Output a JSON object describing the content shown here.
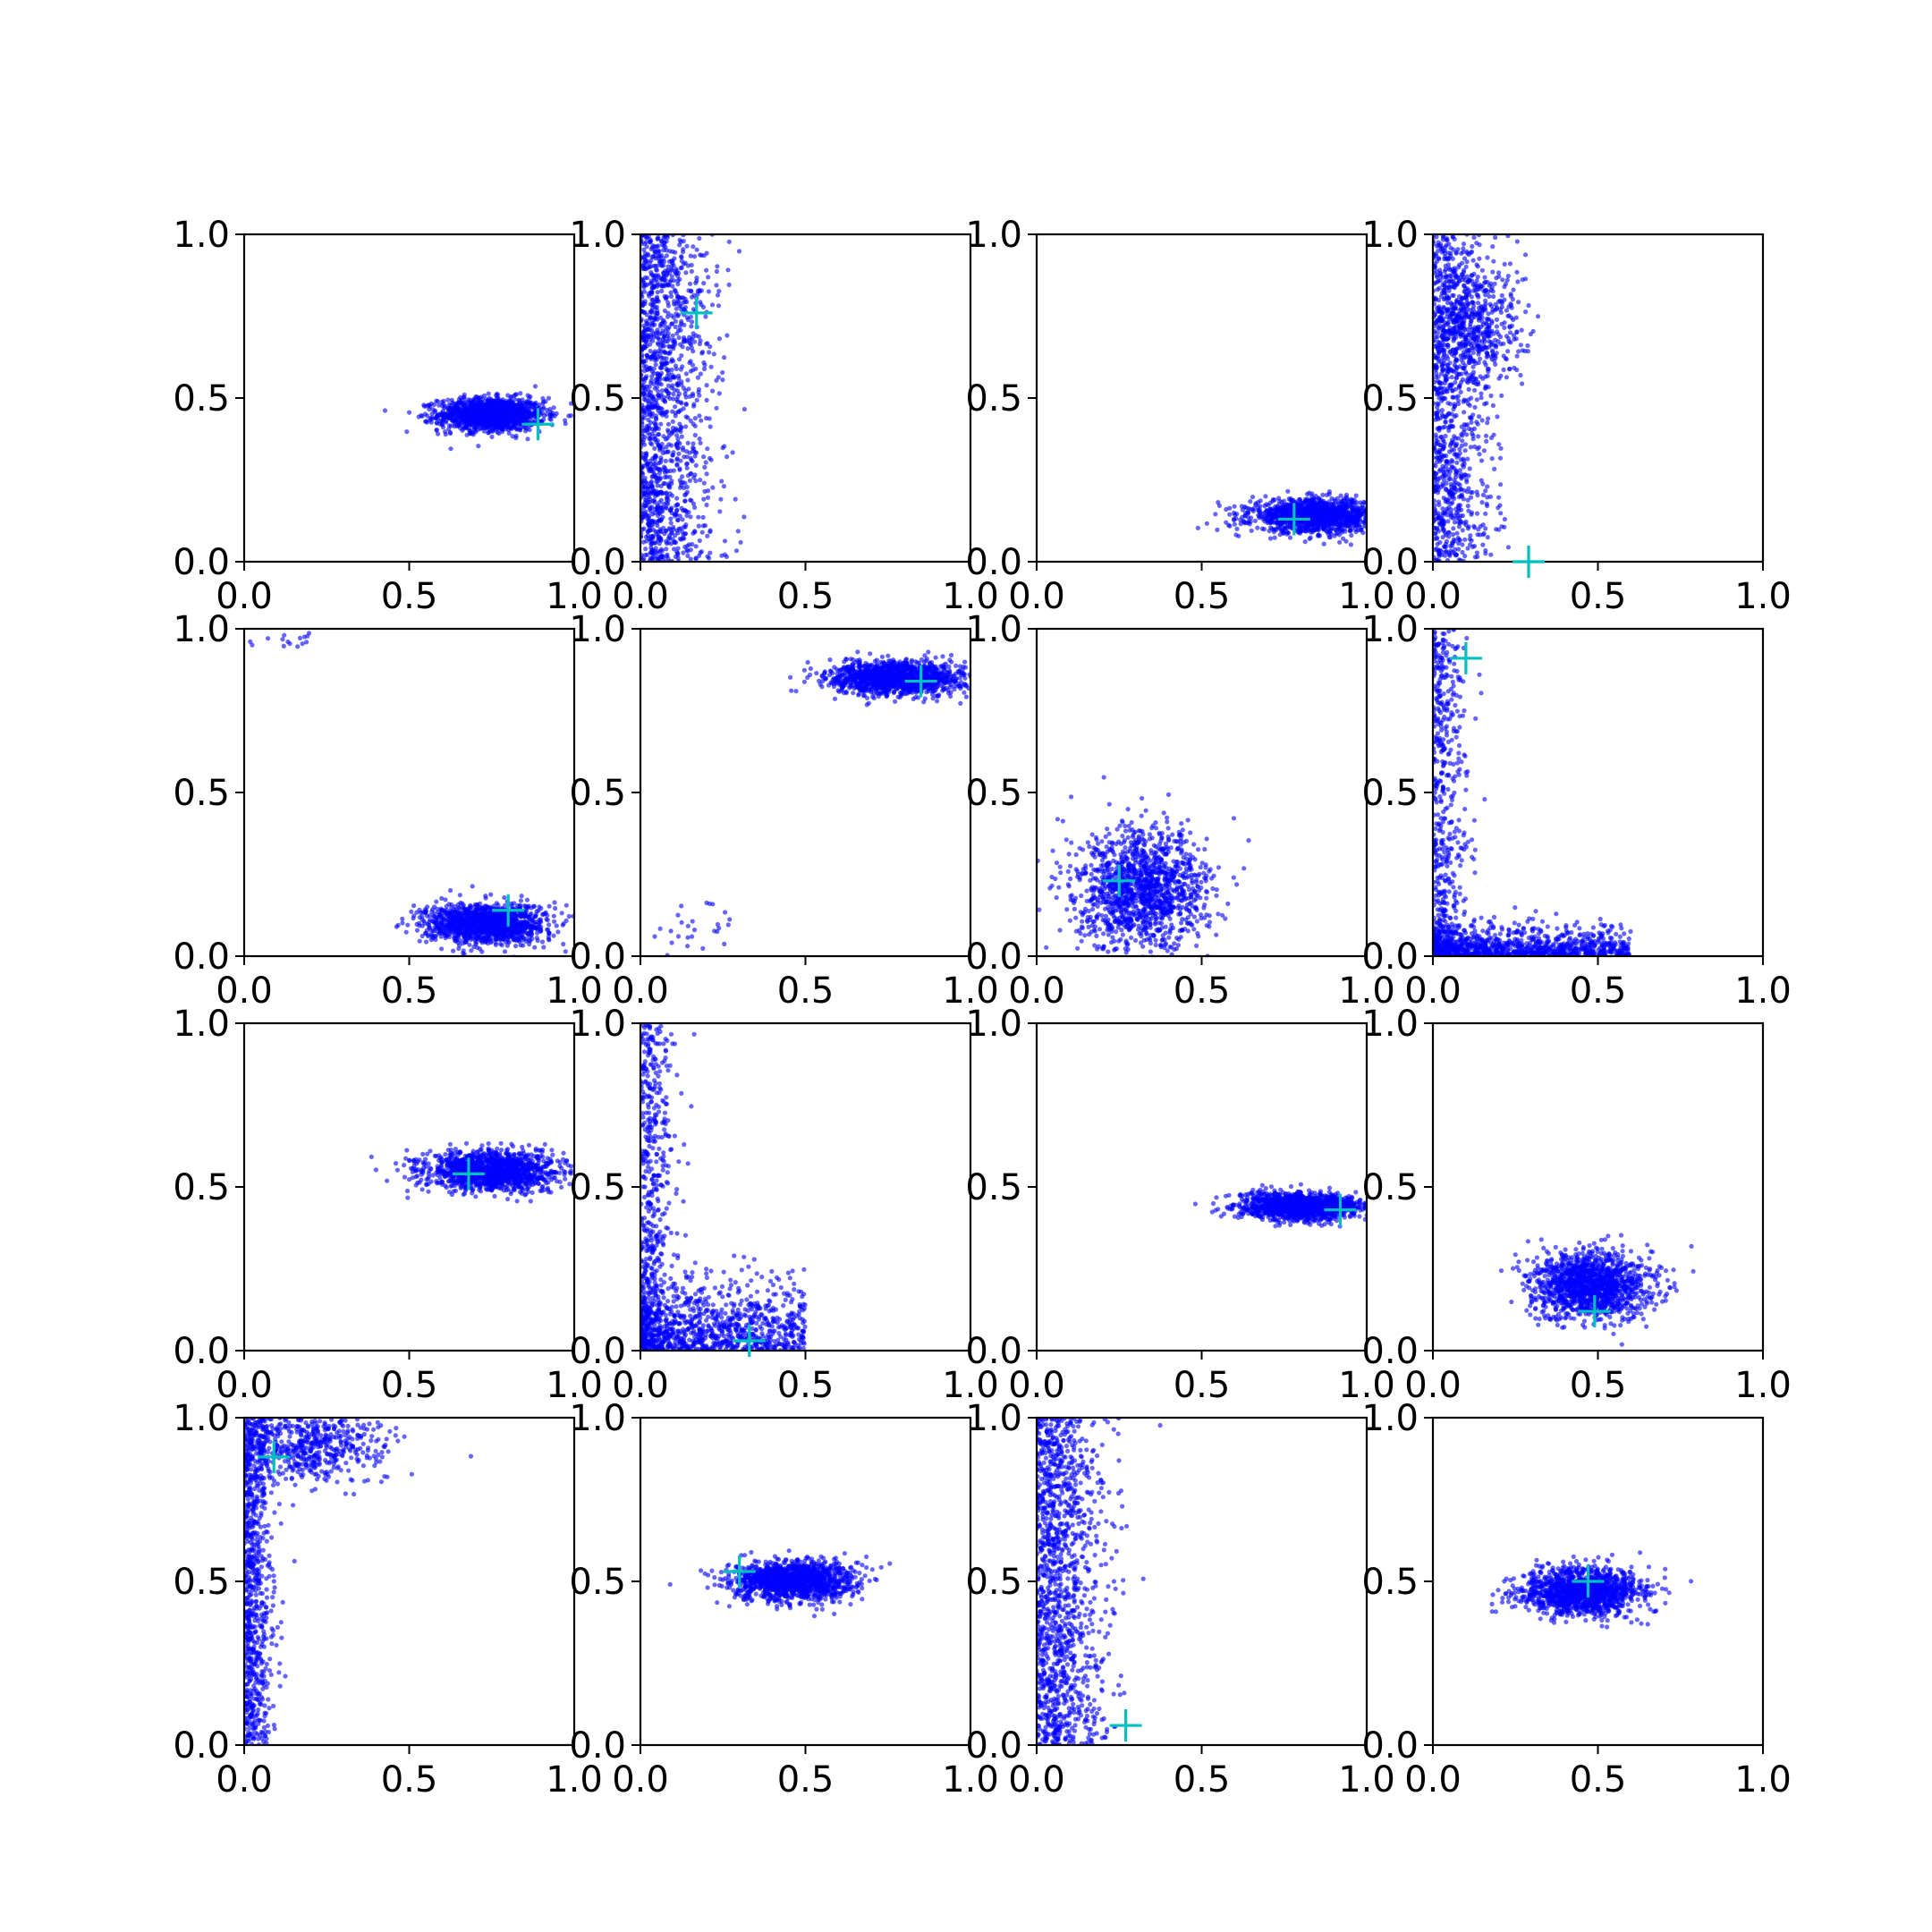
{
  "figure": {
    "background": "#ffffff",
    "point_color": "#0000ff",
    "marker_color": "#00bfbf"
  },
  "chart_data": [
    {
      "type": "scatter",
      "row": 0,
      "col": 0,
      "xlim": [
        0,
        1
      ],
      "ylim": [
        0,
        1
      ],
      "xticks": [
        "0.0",
        "0.5",
        "1.0"
      ],
      "yticks": [
        "0.0",
        "0.5",
        "1.0"
      ],
      "grid": false,
      "marker": {
        "x": 0.89,
        "y": 0.42
      },
      "clusters": [
        {
          "shape": "gaussian",
          "cx": 0.75,
          "cy": 0.45,
          "sx": 0.08,
          "sy": 0.025,
          "n": 1400
        }
      ]
    },
    {
      "type": "scatter",
      "row": 0,
      "col": 1,
      "xlim": [
        0,
        1
      ],
      "ylim": [
        0,
        1
      ],
      "xticks": [
        "0.0",
        "0.5",
        "1.0"
      ],
      "yticks": [
        "0.0",
        "0.5",
        "1.0"
      ],
      "grid": false,
      "marker": {
        "x": 0.17,
        "y": 0.76
      },
      "clusters": [
        {
          "shape": "band_y",
          "x0": 0.0,
          "xscale": 0.1,
          "ymin": 0.0,
          "ymax": 1.0,
          "n": 1400
        }
      ]
    },
    {
      "type": "scatter",
      "row": 0,
      "col": 2,
      "xlim": [
        0,
        1
      ],
      "ylim": [
        0,
        1
      ],
      "xticks": [
        "0.0",
        "0.5",
        "1.0"
      ],
      "yticks": [
        "0.0",
        "0.5",
        "1.0"
      ],
      "grid": false,
      "marker": {
        "x": 0.78,
        "y": 0.13
      },
      "clusters": [
        {
          "shape": "gaussian",
          "cx": 0.85,
          "cy": 0.14,
          "sx": 0.1,
          "sy": 0.025,
          "n": 1400
        }
      ]
    },
    {
      "type": "scatter",
      "row": 0,
      "col": 3,
      "xlim": [
        0,
        1
      ],
      "ylim": [
        0,
        1
      ],
      "xticks": [
        "0.0",
        "0.5",
        "1.0"
      ],
      "yticks": [
        "0.0",
        "0.5",
        "1.0"
      ],
      "grid": false,
      "marker": {
        "x": 0.29,
        "y": 0.0
      },
      "clusters": [
        {
          "shape": "band_y",
          "x0": 0.0,
          "xscale": 0.08,
          "ymin": 0.0,
          "ymax": 1.0,
          "n": 1000
        },
        {
          "shape": "gaussian",
          "cx": 0.12,
          "cy": 0.72,
          "sx": 0.08,
          "sy": 0.1,
          "n": 500
        }
      ]
    },
    {
      "type": "scatter",
      "row": 1,
      "col": 0,
      "xlim": [
        0,
        1
      ],
      "ylim": [
        0,
        1
      ],
      "xticks": [
        "0.0",
        "0.5",
        "1.0"
      ],
      "yticks": [
        "0.0",
        "0.5",
        "1.0"
      ],
      "grid": false,
      "marker": {
        "x": 0.8,
        "y": 0.14
      },
      "clusters": [
        {
          "shape": "gaussian",
          "cx": 0.73,
          "cy": 0.1,
          "sx": 0.09,
          "sy": 0.03,
          "n": 1400
        },
        {
          "shape": "gaussian",
          "cx": 0.12,
          "cy": 0.96,
          "sx": 0.06,
          "sy": 0.015,
          "n": 15
        }
      ]
    },
    {
      "type": "scatter",
      "row": 1,
      "col": 1,
      "xlim": [
        0,
        1
      ],
      "ylim": [
        0,
        1
      ],
      "xticks": [
        "0.0",
        "0.5",
        "1.0"
      ],
      "yticks": [
        "0.0",
        "0.5",
        "1.0"
      ],
      "grid": false,
      "marker": {
        "x": 0.85,
        "y": 0.84
      },
      "clusters": [
        {
          "shape": "gaussian",
          "cx": 0.78,
          "cy": 0.85,
          "sx": 0.1,
          "sy": 0.025,
          "n": 1400
        },
        {
          "shape": "gaussian",
          "cx": 0.14,
          "cy": 0.08,
          "sx": 0.07,
          "sy": 0.06,
          "n": 30
        }
      ]
    },
    {
      "type": "scatter",
      "row": 1,
      "col": 2,
      "xlim": [
        0,
        1
      ],
      "ylim": [
        0,
        1
      ],
      "xticks": [
        "0.0",
        "0.5",
        "1.0"
      ],
      "yticks": [
        "0.0",
        "0.5",
        "1.0"
      ],
      "grid": false,
      "marker": {
        "x": 0.25,
        "y": 0.23
      },
      "clusters": [
        {
          "shape": "gaussian",
          "cx": 0.32,
          "cy": 0.2,
          "sx": 0.1,
          "sy": 0.09,
          "n": 1400
        }
      ]
    },
    {
      "type": "scatter",
      "row": 1,
      "col": 3,
      "xlim": [
        0,
        1
      ],
      "ylim": [
        0,
        1
      ],
      "xticks": [
        "0.0",
        "0.5",
        "1.0"
      ],
      "yticks": [
        "0.0",
        "0.5",
        "1.0"
      ],
      "grid": false,
      "marker": {
        "x": 0.1,
        "y": 0.91
      },
      "clusters": [
        {
          "shape": "band_y",
          "x0": 0.0,
          "xscale": 0.05,
          "ymin": 0.0,
          "ymax": 1.0,
          "n": 500
        },
        {
          "shape": "band_x",
          "y0": 0.0,
          "yscale": 0.04,
          "xmin": 0.0,
          "xmax": 0.6,
          "n": 1000
        }
      ]
    },
    {
      "type": "scatter",
      "row": 2,
      "col": 0,
      "xlim": [
        0,
        1
      ],
      "ylim": [
        0,
        1
      ],
      "xticks": [
        "0.0",
        "0.5",
        "1.0"
      ],
      "yticks": [
        "0.0",
        "0.5",
        "1.0"
      ],
      "grid": false,
      "marker": {
        "x": 0.68,
        "y": 0.54
      },
      "clusters": [
        {
          "shape": "gaussian",
          "cx": 0.75,
          "cy": 0.55,
          "sx": 0.1,
          "sy": 0.03,
          "n": 1400
        }
      ]
    },
    {
      "type": "scatter",
      "row": 2,
      "col": 1,
      "xlim": [
        0,
        1
      ],
      "ylim": [
        0,
        1
      ],
      "xticks": [
        "0.0",
        "0.5",
        "1.0"
      ],
      "yticks": [
        "0.0",
        "0.5",
        "1.0"
      ],
      "grid": false,
      "marker": {
        "x": 0.33,
        "y": 0.03
      },
      "clusters": [
        {
          "shape": "band_y",
          "x0": 0.0,
          "xscale": 0.05,
          "ymin": 0.0,
          "ymax": 1.0,
          "n": 500
        },
        {
          "shape": "band_x",
          "y0": 0.0,
          "yscale": 0.1,
          "xmin": 0.0,
          "xmax": 0.5,
          "n": 1000
        }
      ]
    },
    {
      "type": "scatter",
      "row": 2,
      "col": 2,
      "xlim": [
        0,
        1
      ],
      "ylim": [
        0,
        1
      ],
      "xticks": [
        "0.0",
        "0.5",
        "1.0"
      ],
      "yticks": [
        "0.0",
        "0.5",
        "1.0"
      ],
      "grid": false,
      "marker": {
        "x": 0.92,
        "y": 0.43
      },
      "clusters": [
        {
          "shape": "gaussian",
          "cx": 0.8,
          "cy": 0.44,
          "sx": 0.09,
          "sy": 0.02,
          "n": 1400
        }
      ]
    },
    {
      "type": "scatter",
      "row": 2,
      "col": 3,
      "xlim": [
        0,
        1
      ],
      "ylim": [
        0,
        1
      ],
      "xticks": [
        "0.0",
        "0.5",
        "1.0"
      ],
      "yticks": [
        "0.0",
        "0.5",
        "1.0"
      ],
      "grid": false,
      "marker": {
        "x": 0.49,
        "y": 0.12
      },
      "clusters": [
        {
          "shape": "gaussian",
          "cx": 0.48,
          "cy": 0.2,
          "sx": 0.09,
          "sy": 0.05,
          "n": 1400
        }
      ]
    },
    {
      "type": "scatter",
      "row": 3,
      "col": 0,
      "xlim": [
        0,
        1
      ],
      "ylim": [
        0,
        1
      ],
      "xticks": [
        "0.0",
        "0.5",
        "1.0"
      ],
      "yticks": [
        "0.0",
        "0.5",
        "1.0"
      ],
      "grid": false,
      "marker": {
        "x": 0.09,
        "y": 0.88
      },
      "clusters": [
        {
          "shape": "band_y",
          "x0": 0.0,
          "xscale": 0.04,
          "ymin": 0.0,
          "ymax": 1.0,
          "n": 800
        },
        {
          "shape": "gaussian",
          "cx": 0.18,
          "cy": 0.92,
          "sx": 0.12,
          "sy": 0.06,
          "n": 600
        }
      ]
    },
    {
      "type": "scatter",
      "row": 3,
      "col": 1,
      "xlim": [
        0,
        1
      ],
      "ylim": [
        0,
        1
      ],
      "xticks": [
        "0.0",
        "0.5",
        "1.0"
      ],
      "yticks": [
        "0.0",
        "0.5",
        "1.0"
      ],
      "grid": false,
      "marker": {
        "x": 0.3,
        "y": 0.53
      },
      "clusters": [
        {
          "shape": "gaussian",
          "cx": 0.46,
          "cy": 0.5,
          "sx": 0.09,
          "sy": 0.03,
          "n": 1400
        }
      ]
    },
    {
      "type": "scatter",
      "row": 3,
      "col": 2,
      "xlim": [
        0,
        1
      ],
      "ylim": [
        0,
        1
      ],
      "xticks": [
        "0.0",
        "0.5",
        "1.0"
      ],
      "yticks": [
        "0.0",
        "0.5",
        "1.0"
      ],
      "grid": false,
      "marker": {
        "x": 0.27,
        "y": 0.06
      },
      "clusters": [
        {
          "shape": "band_y",
          "x0": 0.0,
          "xscale": 0.1,
          "ymin": 0.0,
          "ymax": 1.0,
          "n": 1300
        }
      ]
    },
    {
      "type": "scatter",
      "row": 3,
      "col": 3,
      "xlim": [
        0,
        1
      ],
      "ylim": [
        0,
        1
      ],
      "xticks": [
        "0.0",
        "0.5",
        "1.0"
      ],
      "yticks": [
        "0.0",
        "0.5",
        "1.0"
      ],
      "grid": false,
      "marker": {
        "x": 0.47,
        "y": 0.5
      },
      "clusters": [
        {
          "shape": "gaussian",
          "cx": 0.45,
          "cy": 0.47,
          "sx": 0.09,
          "sy": 0.035,
          "n": 1400
        }
      ]
    }
  ]
}
